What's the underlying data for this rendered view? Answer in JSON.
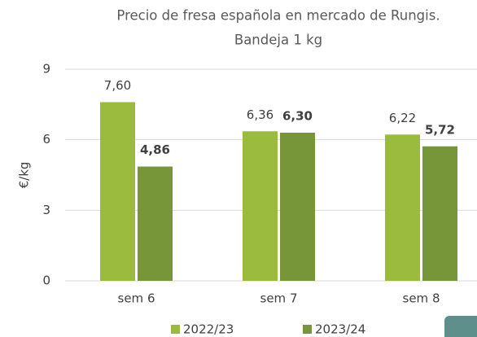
{
  "chart_data": {
    "type": "bar",
    "title": "Precio de fresa española en mercado de Rungis.",
    "subtitle": "Bandeja 1 kg",
    "y_label": "€/kg",
    "categories": [
      "sem 6",
      "sem 7",
      "sem 8"
    ],
    "series": [
      {
        "name": "2022/23",
        "color": "#9bbb3f",
        "values": [
          7.6,
          6.36,
          6.22
        ],
        "value_labels": [
          "7,60",
          "6,36",
          "6,22"
        ]
      },
      {
        "name": "2023/24",
        "color": "#77963a",
        "values": [
          4.86,
          6.3,
          5.72
        ],
        "value_labels": [
          "4,86",
          "6,30",
          "5,72"
        ]
      }
    ],
    "ylim": [
      0,
      9
    ],
    "yticks": [
      0,
      3,
      6,
      9
    ],
    "grid": true,
    "legend": "bottom"
  }
}
